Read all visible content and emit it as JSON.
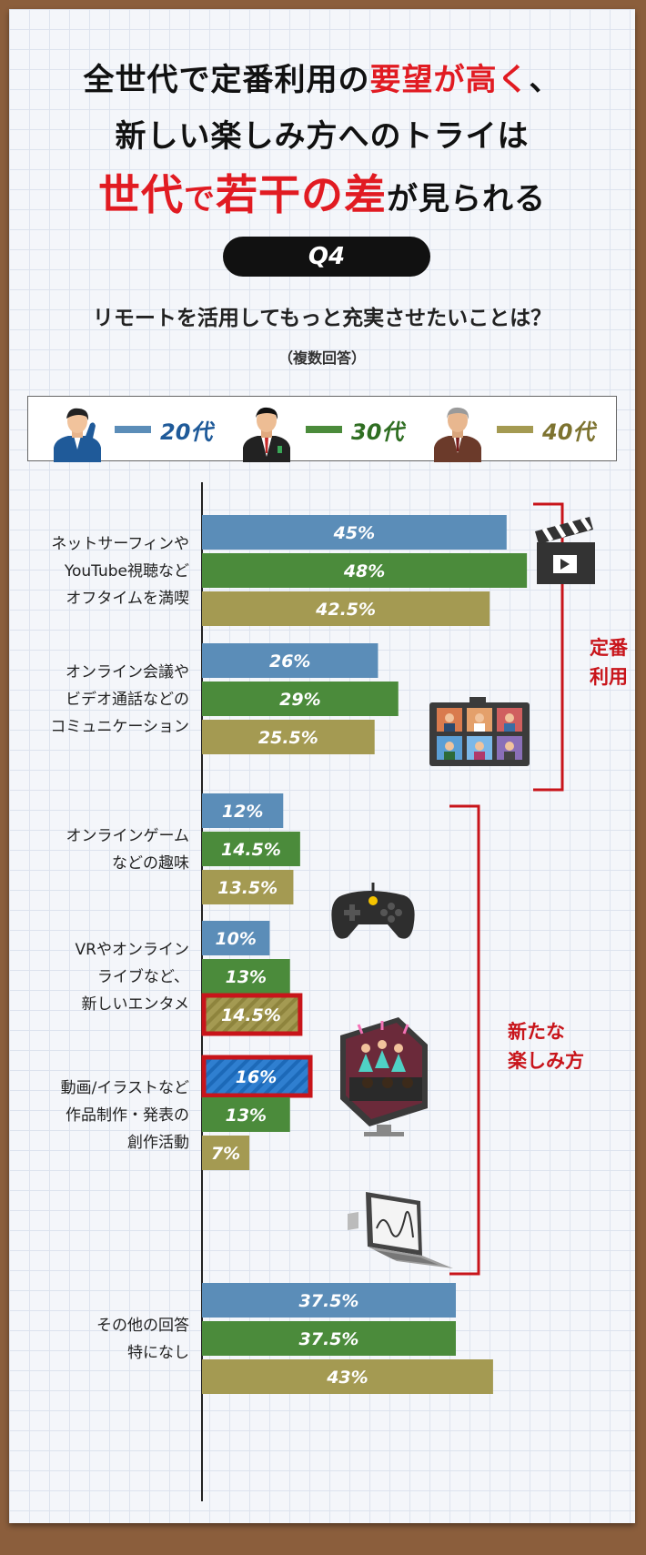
{
  "headline": {
    "line1": [
      {
        "text": "全世代で定番利用の",
        "red": false
      },
      {
        "text": "要望が高く",
        "red": true
      },
      {
        "text": "、",
        "red": false
      }
    ],
    "line2": "新しい楽しみ方へのトライは",
    "line3": [
      {
        "text": "世代",
        "red": true,
        "big": true
      },
      {
        "text": "で",
        "red": true,
        "big": false
      },
      {
        "text": "若干の差",
        "red": true,
        "big": true
      },
      {
        "text": "が見られる",
        "red": false,
        "big": false
      }
    ]
  },
  "question": {
    "badge": "Q4",
    "text": "リモートを活用してもっと充実させたいことは？",
    "note": "（複数回答）"
  },
  "legend": [
    {
      "label": "20代",
      "color": "#5b8db8"
    },
    {
      "label": "30代",
      "color": "#4b8b3b"
    },
    {
      "label": "40代",
      "color": "#a49a52"
    }
  ],
  "groups": {
    "standard": "定番\n利用",
    "new": "新たな\n楽しみ方"
  },
  "icons": [
    "clapperboard-icon",
    "video-conference-icon",
    "game-controller-icon",
    "vr-concert-icon",
    "laptop-drawing-icon"
  ],
  "chart_data": {
    "type": "bar",
    "orientation": "horizontal",
    "categories": [
      "ネットサーフィンや\nYouTube視聴など\nオフタイムを満喫",
      "オンライン会議や\nビデオ通話などの\nコミュニケーション",
      "オンラインゲーム\nなどの趣味",
      "VRやオンライン\nライブなど、\n新しいエンタメ",
      "動画/イラストなど\n作品制作・発表の\n創作活動",
      "その他の回答\n特になし"
    ],
    "series": [
      {
        "name": "20代",
        "color": "#5b8db8",
        "values": [
          45,
          26,
          12,
          10,
          16,
          37.5
        ]
      },
      {
        "name": "30代",
        "color": "#4b8b3b",
        "values": [
          48,
          29,
          14.5,
          13,
          13,
          37.5
        ]
      },
      {
        "name": "40代",
        "color": "#a49a52",
        "values": [
          42.5,
          25.5,
          13.5,
          14.5,
          7,
          43
        ]
      }
    ],
    "labels": [
      [
        "45%",
        "48%",
        "42.5%"
      ],
      [
        "26%",
        "29%",
        "25.5%"
      ],
      [
        "12%",
        "14.5%",
        "13.5%"
      ],
      [
        "10%",
        "13%",
        "14.5%"
      ],
      [
        "16%",
        "13%",
        "7%"
      ],
      [
        "37.5%",
        "37.5%",
        "43%"
      ]
    ],
    "highlight": [
      {
        "category": 3,
        "series": 2
      },
      {
        "category": 4,
        "series": 0
      }
    ],
    "xlim": [
      0,
      60
    ],
    "grid": false
  }
}
